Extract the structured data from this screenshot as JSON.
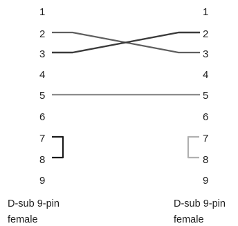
{
  "left_connector": {
    "pins": [
      "1",
      "2",
      "3",
      "4",
      "5",
      "6",
      "7",
      "8",
      "9"
    ],
    "caption_line1": "D-sub 9-pin",
    "caption_line2": "female"
  },
  "right_connector": {
    "pins": [
      "1",
      "2",
      "3",
      "4",
      "5",
      "6",
      "7",
      "8",
      "9"
    ],
    "caption_line1": "D-sub 9-pin",
    "caption_line2": "female"
  },
  "colors": {
    "text": "#1e1e1e",
    "dark_wire": "#3a3a3a",
    "medium_wire": "#5e5e5e",
    "light_wire": "#8c8c8c",
    "loopback_left": "#1a1a1a",
    "loopback_right": "#b0b0b0"
  }
}
